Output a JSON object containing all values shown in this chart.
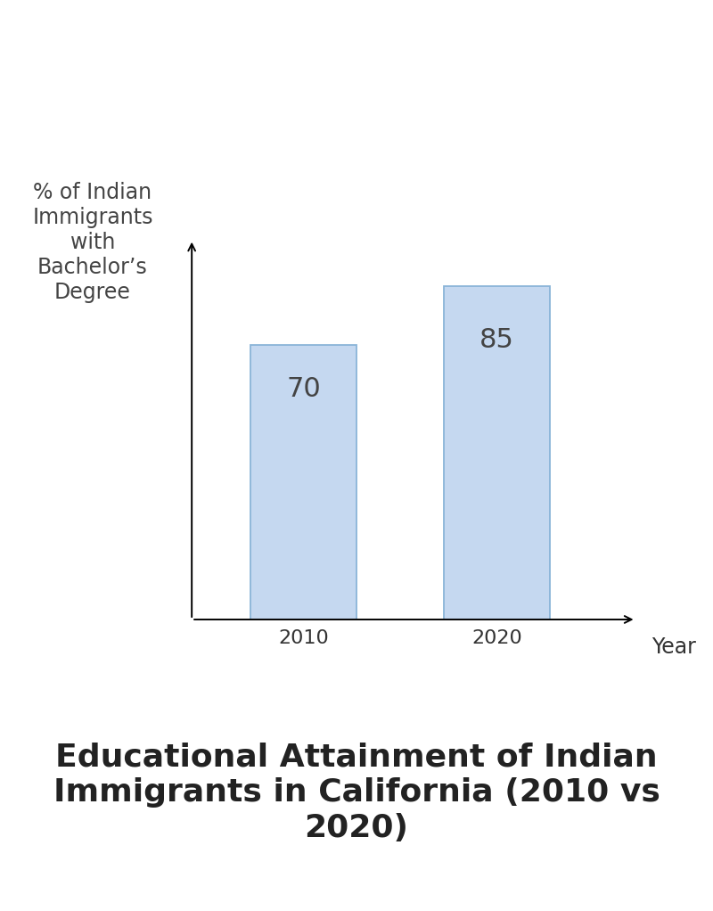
{
  "categories": [
    "2010",
    "2020"
  ],
  "values": [
    70,
    85
  ],
  "bar_color": "#c5d8f0",
  "bar_edgecolor": "#8ab4d8",
  "bar_label_fontsize": 22,
  "bar_label_color": "#444444",
  "ylabel": "% of Indian\nImmigrants\nwith\nBachelor’s\nDegree",
  "xlabel": "Year",
  "ylabel_fontsize": 17,
  "xlabel_fontsize": 17,
  "xtick_fontsize": 16,
  "title": "Educational Attainment of Indian\nImmigrants in California (2010 vs\n2020)",
  "title_fontsize": 26,
  "background_color": "#ffffff",
  "bar_width": 0.55,
  "ylim_max": 100
}
